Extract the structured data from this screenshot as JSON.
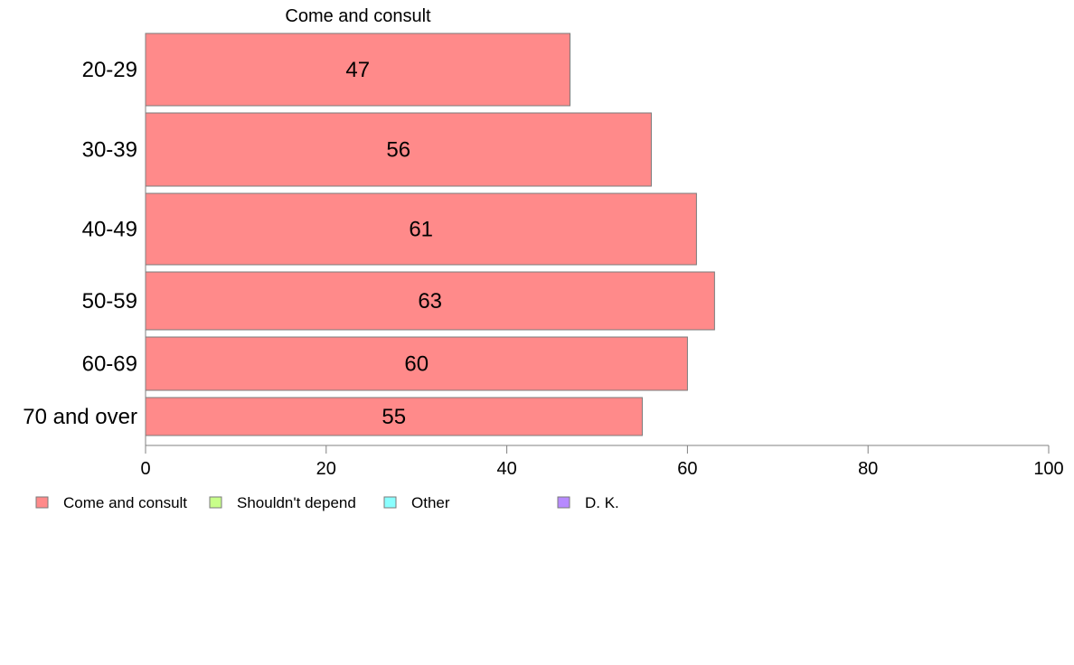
{
  "chart_data": {
    "type": "bar",
    "orientation": "horizontal",
    "series_header": "Come and consult",
    "categories": [
      "20-29",
      "30-39",
      "40-49",
      "50-59",
      "60-69",
      "70 and over"
    ],
    "series": [
      {
        "name": "Come and consult",
        "values": [
          47,
          56,
          61,
          63,
          60,
          55
        ]
      }
    ],
    "value_labels": [
      "47",
      "56",
      "61",
      "63",
      "60",
      "55"
    ],
    "xlim": [
      0,
      100
    ],
    "x_ticks": [
      0,
      20,
      40,
      60,
      80,
      100
    ],
    "x_tick_labels": [
      "0",
      "20",
      "40",
      "60",
      "80",
      "100"
    ],
    "grid": false,
    "legend_position": "bottom-left",
    "legend": [
      {
        "label": "Come and consult",
        "color": "#ff8a8a"
      },
      {
        "label": "Shouldn't depend",
        "color": "#c8ff8a"
      },
      {
        "label": "Other",
        "color": "#8affff"
      },
      {
        "label": "D. K.",
        "color": "#b78aff"
      }
    ],
    "bar_color": "#ff8a8a"
  }
}
